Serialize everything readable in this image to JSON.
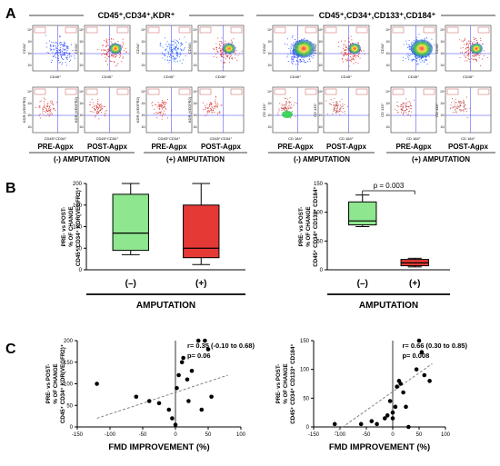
{
  "panels": {
    "a": "A",
    "b": "B",
    "c": "C"
  },
  "headers": {
    "left": "CD45⁺,CD34⁺,KDR⁺",
    "right": "CD45⁺,CD34⁺,CD133⁺,CD184⁺"
  },
  "flow": {
    "pre_label": "PRE-Agpx",
    "post_label": "POST-Agpx",
    "minus_amp": "(-) AMPUTATION",
    "plus_amp": "(+) AMPUTATION",
    "left_x_axis": "CD45⁺",
    "left_y_axis": "CD34⁺",
    "left_bottom_y_axis": "KDR (VEGFR2)",
    "left_bottom_x_axis": "CD45⁺CD34⁺",
    "right_y_axis": "CD34⁺",
    "right_x_axis": "CD45⁺",
    "right_bottom_y_axis": "CD 133⁺",
    "right_bottom_x_axis": "CD 184⁺"
  },
  "chart_data": [
    {
      "type": "box",
      "id": "b-left",
      "ylabel_lines": [
        "PRE- vs POST-",
        "% OF CHANGE",
        "CD45⁺ CD34⁺ KDR(VEGFR2)⁺"
      ],
      "xlabel": "AMPUTATION",
      "categories": [
        "(–)",
        "(+)"
      ],
      "yticks": [
        0,
        50,
        100,
        150,
        200
      ],
      "ylim": [
        0,
        200
      ],
      "boxes": [
        {
          "min": 35,
          "q1": 45,
          "median": 85,
          "q3": 175,
          "max": 200,
          "color": "#8ee68e"
        },
        {
          "min": 12,
          "q1": 28,
          "median": 50,
          "q3": 150,
          "max": 200,
          "color": "#e53935"
        }
      ]
    },
    {
      "type": "box",
      "id": "b-right",
      "ylabel_lines": [
        "PRE- vs POST-",
        "% OF CHANGE",
        "CD45⁺ CD34⁺ CD133⁺ CD184⁺"
      ],
      "xlabel": "AMPUTATION",
      "categories": [
        "(–)",
        "(+)"
      ],
      "yticks": [
        0,
        50,
        100,
        150
      ],
      "ylim": [
        0,
        150
      ],
      "annotation": "p = 0.003",
      "boxes": [
        {
          "min": 75,
          "q1": 78,
          "median": 85,
          "q3": 118,
          "max": 130,
          "color": "#8ee68e"
        },
        {
          "min": 5,
          "q1": 7,
          "median": 12,
          "q3": 18,
          "max": 20,
          "color": "#e53935"
        }
      ]
    },
    {
      "type": "scatter",
      "id": "c-left",
      "ylabel_lines": [
        "PRE- vs POST-",
        "% OF CHANGE",
        "CD45⁺ CD34⁺ KDR(VEGFR2)⁺"
      ],
      "xlabel": "FMD IMPROVEMENT (%)",
      "xticks": [
        -150,
        -100,
        -50,
        0,
        50,
        100
      ],
      "yticks": [
        0,
        50,
        100,
        150,
        200
      ],
      "xlim": [
        -150,
        100
      ],
      "ylim": [
        0,
        200
      ],
      "stats": [
        "r= 0.35 (-0.10 to 0.68)",
        "p= 0.06"
      ],
      "points": [
        [
          -120,
          100
        ],
        [
          -60,
          70
        ],
        [
          -40,
          60
        ],
        [
          -25,
          55
        ],
        [
          -10,
          40
        ],
        [
          -5,
          20
        ],
        [
          0,
          5
        ],
        [
          2,
          90
        ],
        [
          5,
          120
        ],
        [
          10,
          150
        ],
        [
          12,
          160
        ],
        [
          18,
          110
        ],
        [
          20,
          60
        ],
        [
          25,
          130
        ],
        [
          35,
          200
        ],
        [
          45,
          200
        ],
        [
          50,
          180
        ],
        [
          55,
          70
        ],
        [
          40,
          40
        ]
      ],
      "trend": [
        [
          -120,
          20
        ],
        [
          80,
          120
        ]
      ]
    },
    {
      "type": "scatter",
      "id": "c-right",
      "ylabel_lines": [
        "PRE- vs POST-",
        "% OF CHANGE",
        "CD45⁺ CD34⁺ CD133⁺ CD184⁺"
      ],
      "xlabel": "FMD IMPROVEMENT (%)",
      "xticks": [
        -150,
        -100,
        -50,
        0,
        50,
        100
      ],
      "yticks": [
        0,
        50,
        100,
        150
      ],
      "xlim": [
        -150,
        100
      ],
      "ylim": [
        0,
        150
      ],
      "stats": [
        "r= 0.66 (0.30 to 0.85)",
        "p= 0.008"
      ],
      "points": [
        [
          -110,
          5
        ],
        [
          -60,
          5
        ],
        [
          -40,
          10
        ],
        [
          -30,
          5
        ],
        [
          -15,
          15
        ],
        [
          -10,
          20
        ],
        [
          -5,
          45
        ],
        [
          0,
          25
        ],
        [
          0,
          15
        ],
        [
          5,
          35
        ],
        [
          8,
          70
        ],
        [
          12,
          80
        ],
        [
          15,
          75
        ],
        [
          20,
          60
        ],
        [
          25,
          35
        ],
        [
          30,
          0
        ],
        [
          45,
          100
        ],
        [
          50,
          150
        ],
        [
          55,
          130
        ],
        [
          60,
          90
        ],
        [
          70,
          80
        ]
      ],
      "trend": [
        [
          -110,
          -10
        ],
        [
          75,
          110
        ]
      ]
    }
  ]
}
